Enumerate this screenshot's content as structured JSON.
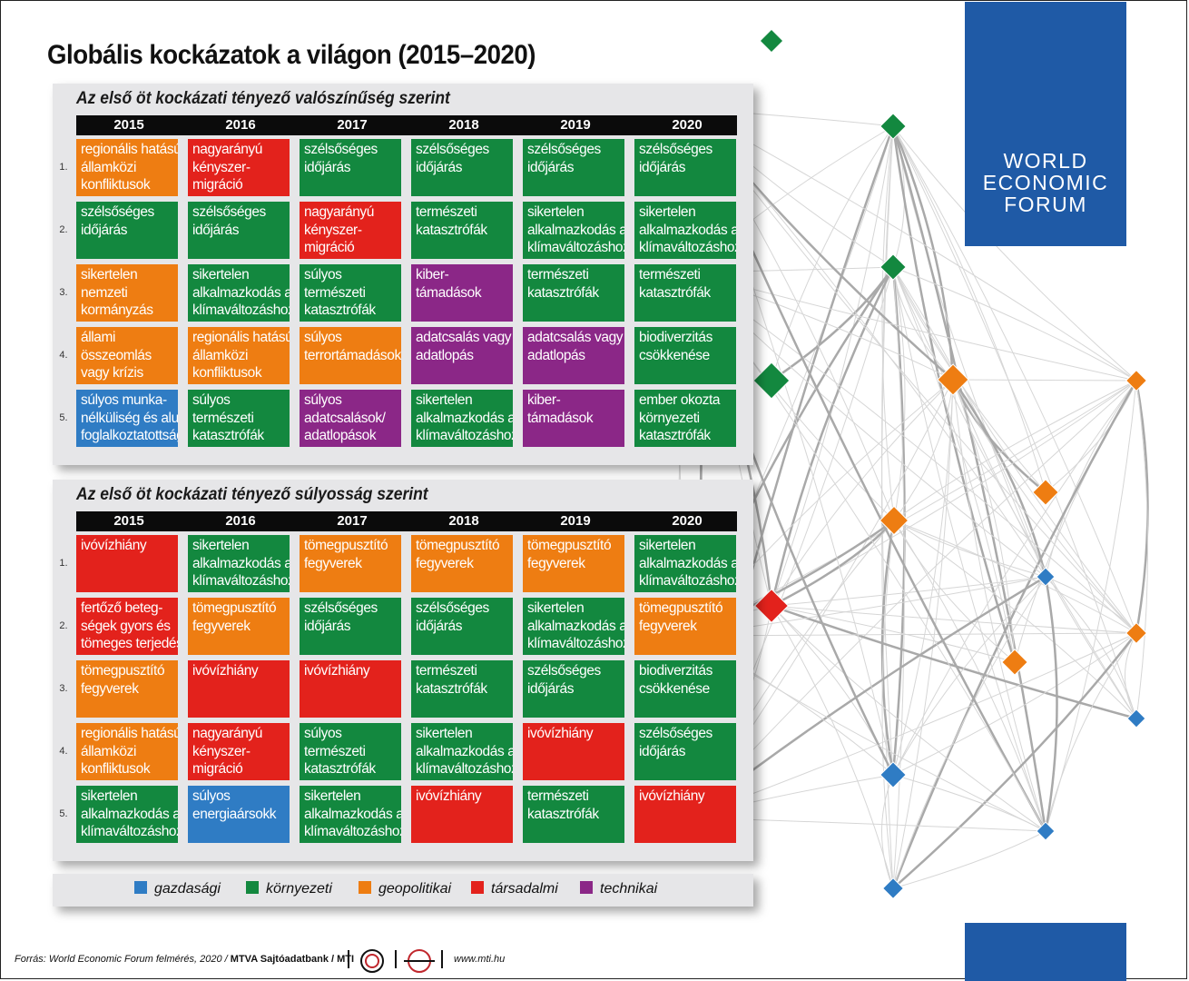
{
  "title": "Globális kockázatok a világon (2015–2020)",
  "logo": {
    "line1": "WORLD",
    "line2": "ECONOMIC",
    "line3": "FORUM"
  },
  "colors": {
    "gazdasagi": "#2f7cc4",
    "kornyezeti": "#13883f",
    "geopolitikai": "#ee7d12",
    "tarsadalmi": "#e3221c",
    "technikai": "#8b2787"
  },
  "years": [
    "2015",
    "2016",
    "2017",
    "2018",
    "2019",
    "2020"
  ],
  "ranks": [
    "1.",
    "2.",
    "3.",
    "4.",
    "5."
  ],
  "panels": [
    {
      "title": "Az első öt kockázati tényező valószínűség szerint",
      "rows": [
        [
          {
            "cat": "geo",
            "lines": [
              "regionális hatású",
              "államközi",
              "konfliktusok"
            ]
          },
          {
            "cat": "soc",
            "lines": [
              "nagyarányú",
              "kényszer-",
              "migráció"
            ]
          },
          {
            "cat": "env",
            "lines": [
              "szélsőséges",
              "időjárás"
            ]
          },
          {
            "cat": "env",
            "lines": [
              "szélsőséges",
              "időjárás"
            ]
          },
          {
            "cat": "env",
            "lines": [
              "szélsőséges",
              "időjárás"
            ]
          },
          {
            "cat": "env",
            "lines": [
              "szélsőséges",
              "időjárás"
            ]
          }
        ],
        [
          {
            "cat": "env",
            "lines": [
              "szélsőséges",
              "időjárás"
            ]
          },
          {
            "cat": "env",
            "lines": [
              "szélsőséges",
              "időjárás"
            ]
          },
          {
            "cat": "soc",
            "lines": [
              "nagyarányú",
              "kényszer-",
              "migráció"
            ]
          },
          {
            "cat": "env",
            "lines": [
              "természeti",
              "katasztrófák"
            ]
          },
          {
            "cat": "env",
            "lines": [
              "sikertelen",
              "alkalmazkodás a",
              "klímaváltozáshoz"
            ]
          },
          {
            "cat": "env",
            "lines": [
              "sikertelen",
              "alkalmazkodás a",
              "klímaváltozáshoz"
            ]
          }
        ],
        [
          {
            "cat": "geo",
            "lines": [
              "sikertelen",
              "nemzeti",
              "kormányzás"
            ]
          },
          {
            "cat": "env",
            "lines": [
              "sikertelen",
              "alkalmazkodás a",
              "klímaváltozáshoz"
            ]
          },
          {
            "cat": "env",
            "lines": [
              "súlyos",
              "természeti",
              "katasztrófák"
            ]
          },
          {
            "cat": "tech",
            "lines": [
              "kiber-",
              "támadások"
            ]
          },
          {
            "cat": "env",
            "lines": [
              "természeti",
              "katasztrófák"
            ]
          },
          {
            "cat": "env",
            "lines": [
              "természeti",
              "katasztrófák"
            ]
          }
        ],
        [
          {
            "cat": "geo",
            "lines": [
              "állami",
              "összeomlás",
              "vagy krízis"
            ]
          },
          {
            "cat": "geo",
            "lines": [
              "regionális hatású",
              "államközi",
              "konfliktusok"
            ]
          },
          {
            "cat": "geo",
            "lines": [
              "súlyos",
              "terrortámadások"
            ]
          },
          {
            "cat": "tech",
            "lines": [
              "adatcsalás vagy",
              "adatlopás"
            ]
          },
          {
            "cat": "tech",
            "lines": [
              "adatcsalás vagy",
              "adatlopás"
            ]
          },
          {
            "cat": "env",
            "lines": [
              "biodiverzitás",
              "csökkenése"
            ]
          }
        ],
        [
          {
            "cat": "eco",
            "lines": [
              "súlyos munka-",
              "nélküliség és alul-",
              "foglalkoztatottság"
            ]
          },
          {
            "cat": "env",
            "lines": [
              "súlyos",
              "természeti",
              "katasztrófák"
            ]
          },
          {
            "cat": "tech",
            "lines": [
              "súlyos",
              "adatcsalások/",
              "adatlopások"
            ]
          },
          {
            "cat": "env",
            "lines": [
              "sikertelen",
              "alkalmazkodás a",
              "klímaváltozáshoz"
            ]
          },
          {
            "cat": "tech",
            "lines": [
              "kiber-",
              "támadások"
            ]
          },
          {
            "cat": "env",
            "lines": [
              "ember okozta",
              "környezeti",
              "katasztrófák"
            ]
          }
        ]
      ]
    },
    {
      "title": "Az első öt kockázati tényező súlyosság szerint",
      "rows": [
        [
          {
            "cat": "soc",
            "lines": [
              "ivóvízhiány"
            ]
          },
          {
            "cat": "env",
            "lines": [
              "sikertelen",
              "alkalmazkodás a",
              "klímaváltozáshoz"
            ]
          },
          {
            "cat": "geo",
            "lines": [
              "tömegpusztító",
              "fegyverek"
            ]
          },
          {
            "cat": "geo",
            "lines": [
              "tömegpusztító",
              "fegyverek"
            ]
          },
          {
            "cat": "geo",
            "lines": [
              "tömegpusztító",
              "fegyverek"
            ]
          },
          {
            "cat": "env",
            "lines": [
              "sikertelen",
              "alkalmazkodás a",
              "klímaváltozáshoz"
            ]
          }
        ],
        [
          {
            "cat": "soc",
            "lines": [
              "fertőző beteg-",
              "ségek gyors és",
              "tömeges terjedése"
            ]
          },
          {
            "cat": "geo",
            "lines": [
              "tömegpusztító",
              "fegyverek"
            ]
          },
          {
            "cat": "env",
            "lines": [
              "szélsőséges",
              "időjárás"
            ]
          },
          {
            "cat": "env",
            "lines": [
              "szélsőséges",
              "időjárás"
            ]
          },
          {
            "cat": "env",
            "lines": [
              "sikertelen",
              "alkalmazkodás a",
              "klímaváltozáshoz"
            ]
          },
          {
            "cat": "geo",
            "lines": [
              "tömegpusztító",
              "fegyverek"
            ]
          }
        ],
        [
          {
            "cat": "geo",
            "lines": [
              "tömegpusztító",
              "fegyverek"
            ]
          },
          {
            "cat": "soc",
            "lines": [
              "ivóvízhiány"
            ]
          },
          {
            "cat": "soc",
            "lines": [
              "ivóvízhiány"
            ]
          },
          {
            "cat": "env",
            "lines": [
              "természeti",
              "katasztrófák"
            ]
          },
          {
            "cat": "env",
            "lines": [
              "szélsőséges",
              "időjárás"
            ]
          },
          {
            "cat": "env",
            "lines": [
              "biodiverzitás",
              "csökkenése"
            ]
          }
        ],
        [
          {
            "cat": "geo",
            "lines": [
              "regionális hatású",
              "államközi",
              "konfliktusok"
            ]
          },
          {
            "cat": "soc",
            "lines": [
              "nagyarányú",
              "kényszer-",
              "migráció"
            ]
          },
          {
            "cat": "env",
            "lines": [
              "súlyos",
              "természeti",
              "katasztrófák"
            ]
          },
          {
            "cat": "env",
            "lines": [
              "sikertelen",
              "alkalmazkodás a",
              "klímaváltozáshoz"
            ]
          },
          {
            "cat": "soc",
            "lines": [
              "ivóvízhiány"
            ]
          },
          {
            "cat": "env",
            "lines": [
              "szélsőséges",
              "időjárás"
            ]
          }
        ],
        [
          {
            "cat": "env",
            "lines": [
              "sikertelen",
              "alkalmazkodás a",
              "klímaváltozáshoz"
            ]
          },
          {
            "cat": "eco",
            "lines": [
              "súlyos",
              "energiaársokk"
            ]
          },
          {
            "cat": "env",
            "lines": [
              "sikertelen",
              "alkalmazkodás a",
              "klímaváltozáshoz"
            ]
          },
          {
            "cat": "soc",
            "lines": [
              "ivóvízhiány"
            ]
          },
          {
            "cat": "env",
            "lines": [
              "természeti",
              "katasztrófák"
            ]
          },
          {
            "cat": "soc",
            "lines": [
              "ivóvízhiány"
            ]
          }
        ]
      ]
    }
  ],
  "legend": [
    {
      "cat": "eco",
      "label": "gazdasági"
    },
    {
      "cat": "env",
      "label": "környezeti"
    },
    {
      "cat": "geo",
      "label": "geopolitikai"
    },
    {
      "cat": "soc",
      "label": "társadalmi"
    },
    {
      "cat": "tech",
      "label": "technikai"
    }
  ],
  "footer": {
    "source": "Forrás: World Economic Forum felmérés, 2020 / ",
    "agency": "MTVA Sajtóadatbank / MTI",
    "url": "www.mti.hu"
  }
}
